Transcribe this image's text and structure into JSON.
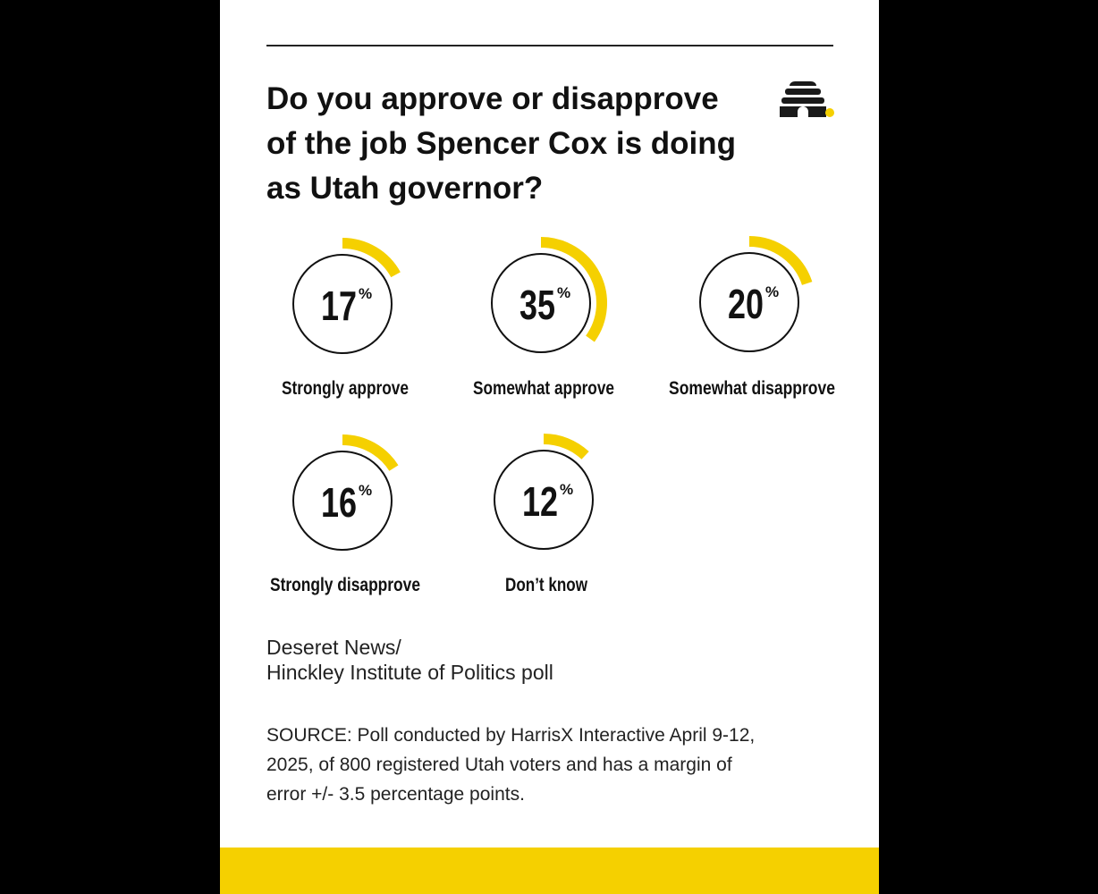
{
  "title_lines": [
    "Do you approve or disapprove",
    "of the job Spencer Cox is doing",
    "as Utah governor?"
  ],
  "logo": {
    "icon": "beehive-icon"
  },
  "source_lines": [
    "Deseret News/",
    "Hinckley Institute of Politics poll"
  ],
  "note_lines": [
    "SOURCE: Poll conducted by HarrisX Interactive April 9-12,",
    "2025, of 800 registered Utah voters and has a margin of",
    "error +/- 3.5 percentage points."
  ],
  "colors": {
    "accent": "#f5d000",
    "ink": "#111111",
    "background": "#ffffff",
    "outer": "#000000"
  },
  "chart_data": {
    "type": "pie",
    "unit": "%",
    "categories": [
      "Strongly approve",
      "Somewhat approve",
      "Somewhat disapprove",
      "Strongly disapprove",
      "Don’t know"
    ],
    "values": [
      17,
      35,
      20,
      16,
      12
    ]
  }
}
